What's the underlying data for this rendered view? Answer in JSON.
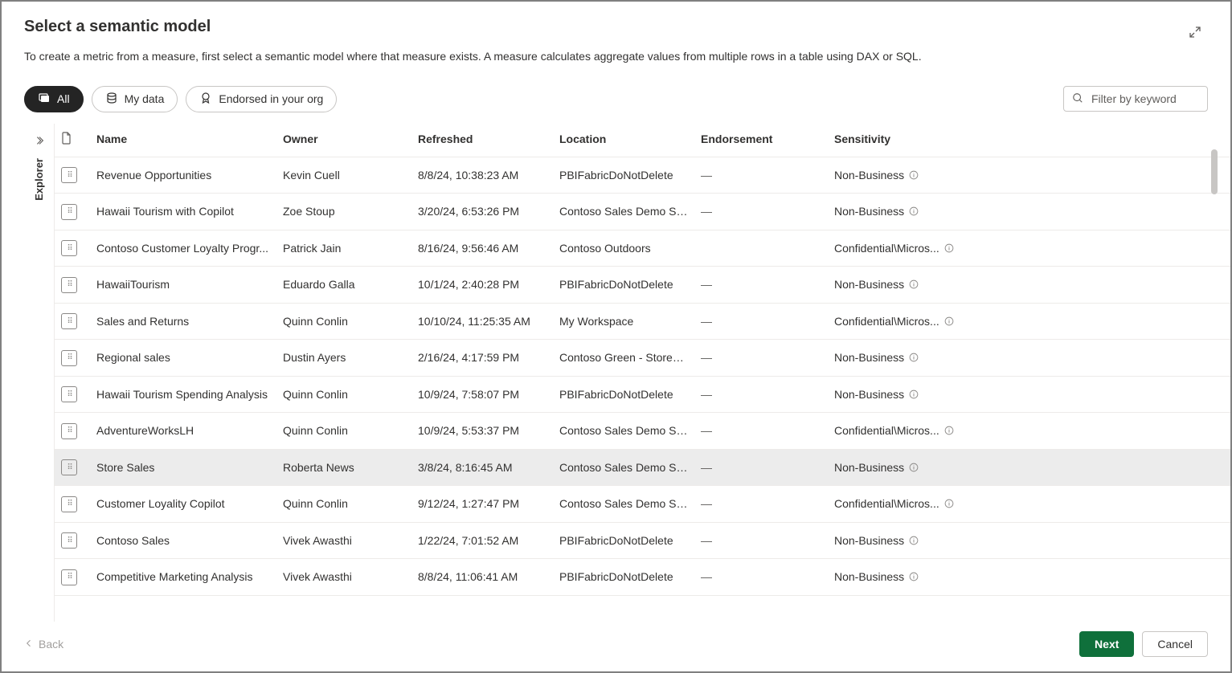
{
  "dialog": {
    "title": "Select a semantic model",
    "description": "To create a metric from a measure, first select a semantic model where that measure exists. A measure calculates aggregate values from multiple rows in a table using DAX or SQL."
  },
  "filters": {
    "all": "All",
    "myData": "My data",
    "endorsed": "Endorsed in your org"
  },
  "search": {
    "placeholder": "Filter by keyword"
  },
  "explorer": {
    "label": "Explorer"
  },
  "columns": {
    "icon": "",
    "name": "Name",
    "owner": "Owner",
    "refreshed": "Refreshed",
    "location": "Location",
    "endorsement": "Endorsement",
    "sensitivity": "Sensitivity"
  },
  "rows": [
    {
      "name": "Revenue Opportunities",
      "owner": "Kevin Cuell",
      "refreshed": "8/8/24, 10:38:23 AM",
      "location": "PBIFabricDoNotDelete",
      "endorsement": "—",
      "sensitivity": "Non-Business",
      "selected": false
    },
    {
      "name": "Hawaii Tourism with Copilot",
      "owner": "Zoe Stoup",
      "refreshed": "3/20/24, 6:53:26 PM",
      "location": "Contoso Sales Demo Sp...",
      "endorsement": "—",
      "sensitivity": "Non-Business",
      "selected": false
    },
    {
      "name": "Contoso Customer Loyalty Progr...",
      "owner": "Patrick Jain",
      "refreshed": "8/16/24, 9:56:46 AM",
      "location": "Contoso Outdoors",
      "endorsement": "",
      "sensitivity": "Confidential\\Micros...",
      "selected": false
    },
    {
      "name": "HawaiiTourism",
      "owner": "Eduardo Galla",
      "refreshed": "10/1/24, 2:40:28 PM",
      "location": "PBIFabricDoNotDelete",
      "endorsement": "—",
      "sensitivity": "Non-Business",
      "selected": false
    },
    {
      "name": "Sales and Returns",
      "owner": "Quinn Conlin",
      "refreshed": "10/10/24, 11:25:35 AM",
      "location": "My Workspace",
      "endorsement": "—",
      "sensitivity": "Confidential\\Micros...",
      "selected": false
    },
    {
      "name": "Regional sales",
      "owner": "Dustin Ayers",
      "refreshed": "2/16/24, 4:17:59 PM",
      "location": "Contoso Green - Stores ...",
      "endorsement": "—",
      "sensitivity": "Non-Business",
      "selected": false
    },
    {
      "name": "Hawaii Tourism Spending Analysis",
      "owner": "Quinn Conlin",
      "refreshed": "10/9/24, 7:58:07 PM",
      "location": "PBIFabricDoNotDelete",
      "endorsement": "—",
      "sensitivity": "Non-Business",
      "selected": false
    },
    {
      "name": "AdventureWorksLH",
      "owner": "Quinn Conlin",
      "refreshed": "10/9/24, 5:53:37 PM",
      "location": "Contoso Sales Demo Sp...",
      "endorsement": "—",
      "sensitivity": "Confidential\\Micros...",
      "selected": false
    },
    {
      "name": "Store Sales",
      "owner": "Roberta News",
      "refreshed": "3/8/24, 8:16:45 AM",
      "location": "Contoso Sales Demo Sp...",
      "endorsement": "—",
      "sensitivity": "Non-Business",
      "selected": true
    },
    {
      "name": "Customer Loyality Copilot",
      "owner": "Quinn Conlin",
      "refreshed": "9/12/24, 1:27:47 PM",
      "location": "Contoso Sales Demo Sp...",
      "endorsement": "—",
      "sensitivity": "Confidential\\Micros...",
      "selected": false
    },
    {
      "name": "Contoso Sales",
      "owner": "Vivek Awasthi",
      "refreshed": "1/22/24, 7:01:52 AM",
      "location": "PBIFabricDoNotDelete",
      "endorsement": "—",
      "sensitivity": "Non-Business",
      "selected": false
    },
    {
      "name": "Competitive Marketing Analysis",
      "owner": "Vivek Awasthi",
      "refreshed": "8/8/24, 11:06:41 AM",
      "location": "PBIFabricDoNotDelete",
      "endorsement": "—",
      "sensitivity": "Non-Business",
      "selected": false
    }
  ],
  "footer": {
    "back": "Back",
    "next": "Next",
    "cancel": "Cancel"
  }
}
